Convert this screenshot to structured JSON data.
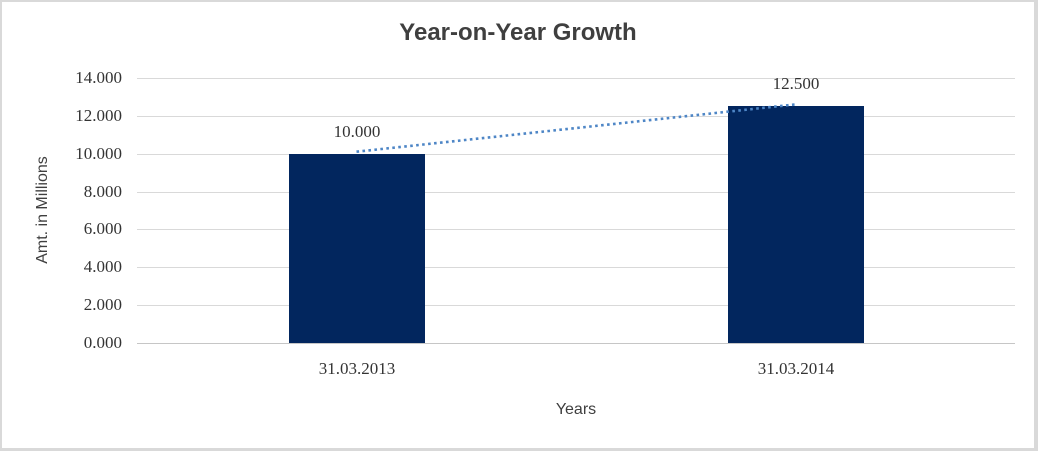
{
  "window": {
    "background_color": "#ffffff",
    "frame_color": "#d9d9d9"
  },
  "chart_data": {
    "type": "bar",
    "title": "Year-on-Year Growth",
    "xlabel": "Years",
    "ylabel": "Amt. in Millions",
    "categories": [
      "31.03.2013",
      "31.03.2014"
    ],
    "values": [
      10.0,
      12.5
    ],
    "value_labels": [
      "10.000",
      "12.500"
    ],
    "ylim": [
      0,
      14
    ],
    "yticks": [
      0,
      2,
      4,
      6,
      8,
      10,
      12,
      14
    ],
    "ytick_labels": [
      "0.000",
      "2.000",
      "4.000",
      "6.000",
      "8.000",
      "10.000",
      "12.000",
      "14.000"
    ],
    "grid": true,
    "legend": false,
    "bar_color": "#02265e",
    "trendline": {
      "type": "linear",
      "style": "dotted",
      "color": "#4e86c6"
    },
    "gridline_color": "#d9d9d9",
    "axis_line_color": "#c6c6c6",
    "title_color": "#3f3f3f",
    "text_color": "#333333"
  }
}
